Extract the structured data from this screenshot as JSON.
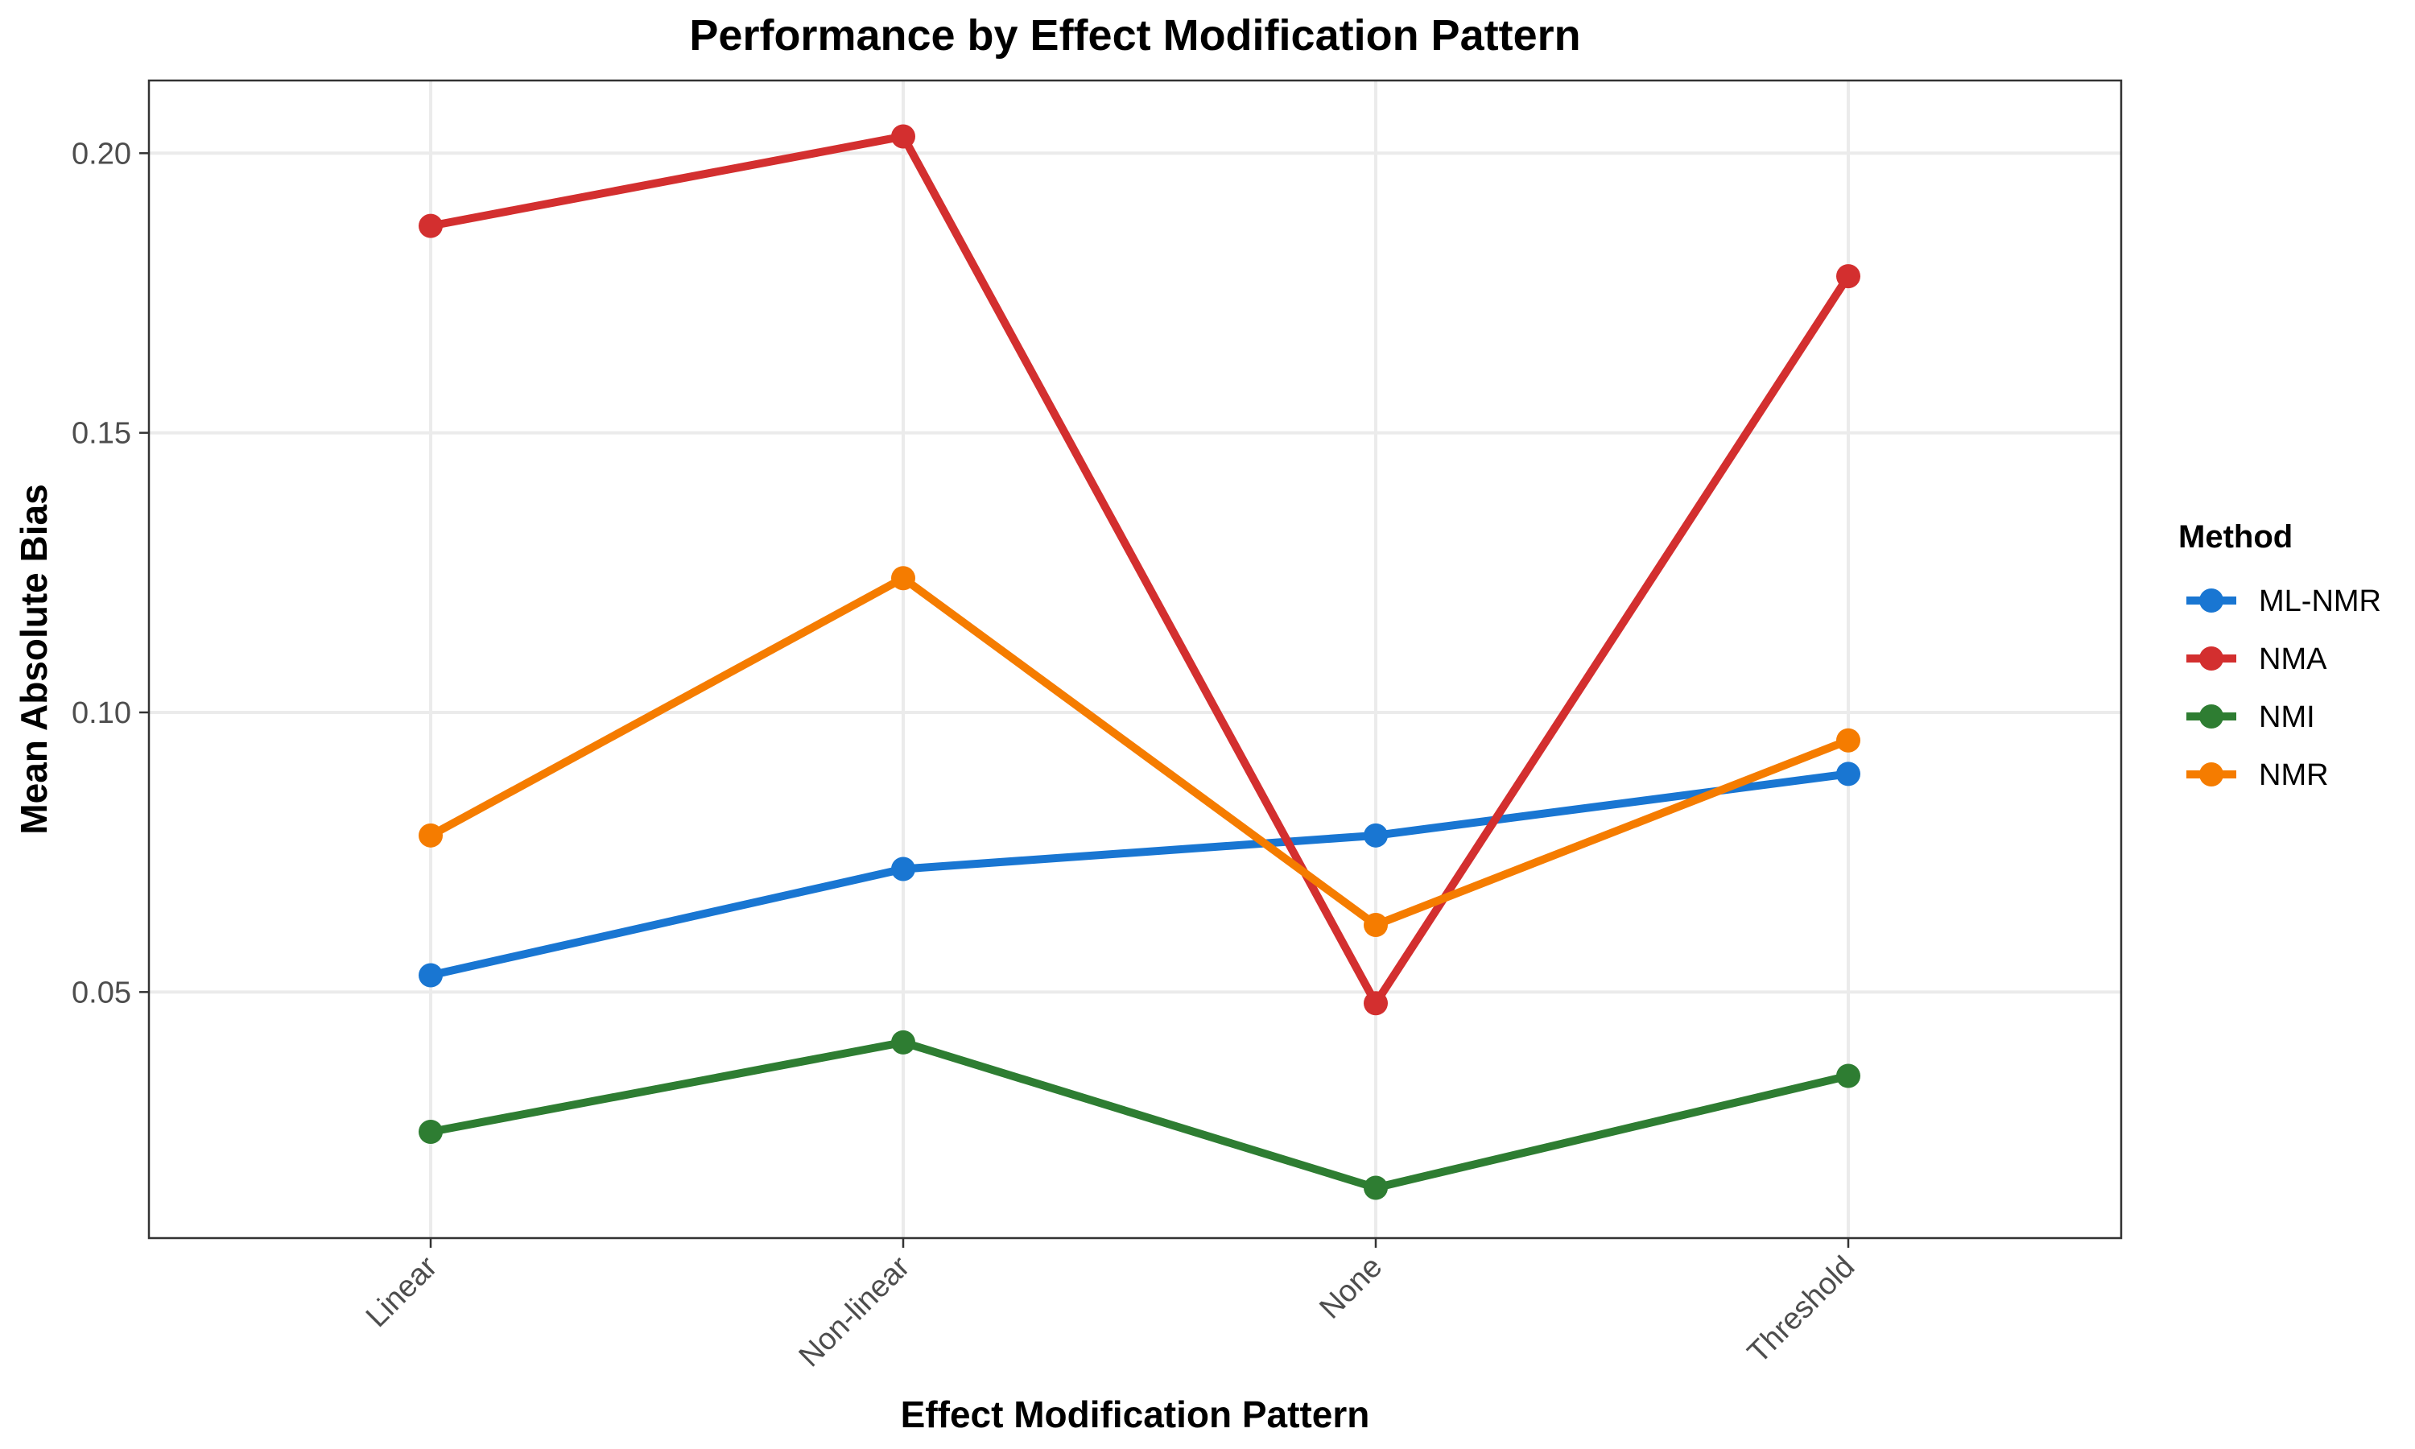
{
  "chart_data": {
    "type": "line",
    "title": "Performance by Effect Modification Pattern",
    "xlabel": "Effect Modification Pattern",
    "ylabel": "Mean Absolute Bias",
    "categories": [
      "Linear",
      "Non-linear",
      "None",
      "Threshold"
    ],
    "ylim": [
      0.006,
      0.213
    ],
    "yticks": [
      0.05,
      0.1,
      0.15,
      0.2
    ],
    "ytick_labels": [
      "0.05",
      "0.10",
      "0.15",
      "0.20"
    ],
    "grid": true,
    "legend": {
      "title": "Method",
      "position": "right"
    },
    "series": [
      {
        "name": "ML-NMR",
        "color": "#1976d2",
        "values": [
          0.053,
          0.072,
          0.078,
          0.089
        ]
      },
      {
        "name": "NMA",
        "color": "#d32f2f",
        "values": [
          0.187,
          0.203,
          0.048,
          0.178
        ]
      },
      {
        "name": "NMI",
        "color": "#2e7d32",
        "values": [
          0.025,
          0.041,
          0.015,
          0.035
        ]
      },
      {
        "name": "NMR",
        "color": "#f57c00",
        "values": [
          0.078,
          0.124,
          0.062,
          0.095
        ]
      }
    ]
  }
}
